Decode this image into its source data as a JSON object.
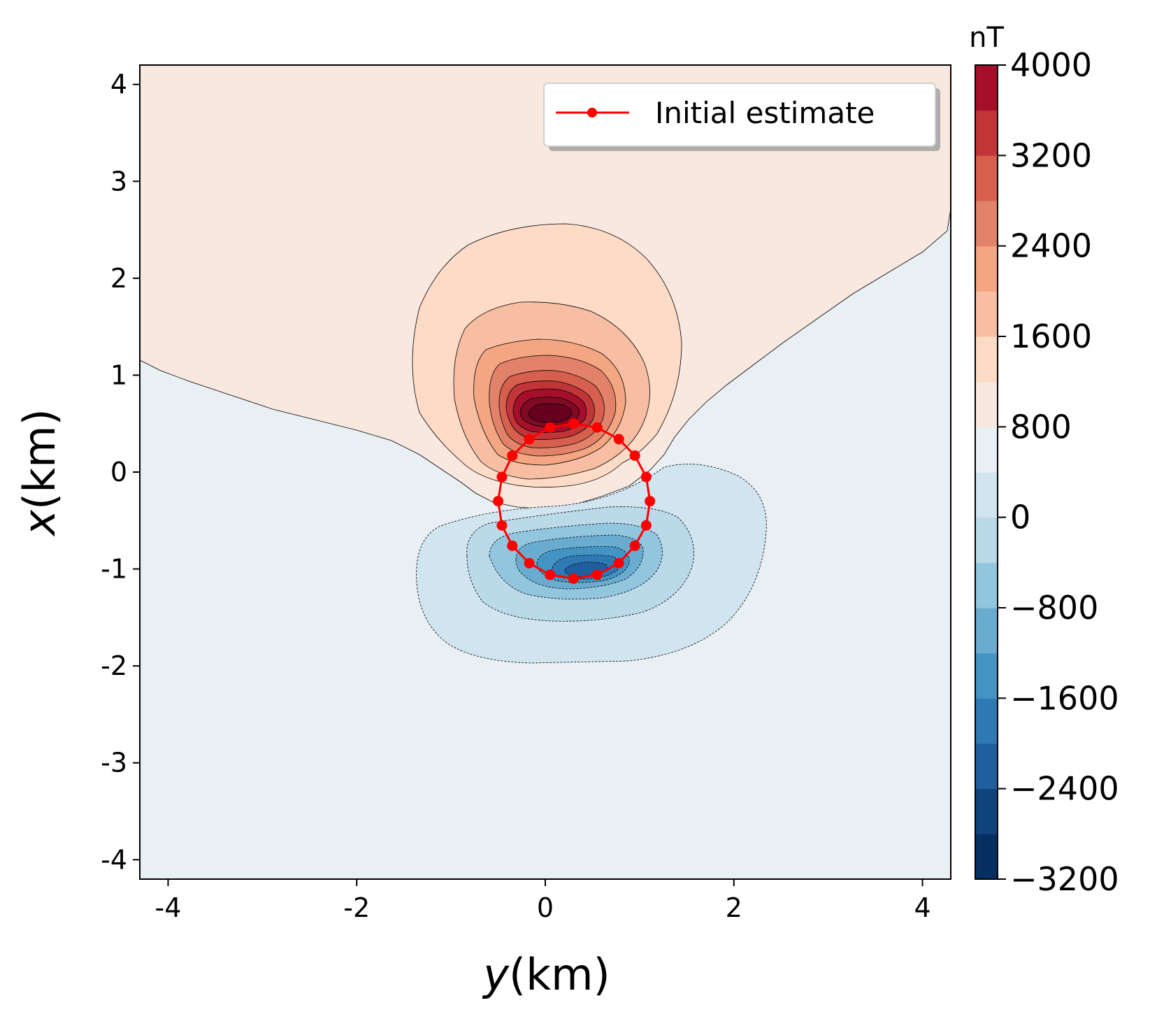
{
  "chart_data": {
    "type": "contour",
    "xlabel_var": "y",
    "xlabel_unit": "(km)",
    "ylabel_var": "x",
    "ylabel_unit": "(km)",
    "xlim": [
      -4.3,
      4.3
    ],
    "ylim": [
      -4.2,
      4.2
    ],
    "xticks": [
      -4,
      -2,
      0,
      2,
      4
    ],
    "xtick_labels": [
      "-4",
      "-2",
      "0",
      "2",
      "4"
    ],
    "yticks": [
      4,
      3,
      2,
      1,
      0,
      -1,
      -2,
      -3,
      -4
    ],
    "ytick_labels": [
      "4",
      "3",
      "2",
      "1",
      "0",
      "-1",
      "-2",
      "-3",
      "-4"
    ],
    "colormap": "RdBu_r",
    "colorbar": {
      "label": "nT",
      "min": -3200,
      "max": 4000,
      "ticks": [
        4000,
        3200,
        2400,
        1600,
        800,
        0,
        -800,
        -1600,
        -2400,
        -3200
      ],
      "tick_labels": [
        "4000",
        "3200",
        "2400",
        "1600",
        "800",
        "0",
        "−800",
        "−1600",
        "−2400",
        "−3200"
      ],
      "levels": [
        -3200,
        -2800,
        -2400,
        -2000,
        -1600,
        -1200,
        -800,
        -400,
        0,
        400,
        800,
        1200,
        1600,
        2000,
        2400,
        2800,
        3200,
        3600,
        4000
      ],
      "colors": [
        "#053061",
        "#0f437b",
        "#1f5f9f",
        "#2f79b5",
        "#4393c3",
        "#6aacd0",
        "#92c5de",
        "#bad9e9",
        "#d1e5f0",
        "#e9f0f4",
        "#f9e8df",
        "#fddbc7",
        "#f8bea3",
        "#f4a582",
        "#e2826a",
        "#d6604d",
        "#c13539",
        "#a50f29",
        "#800a24",
        "#67001f"
      ]
    },
    "field_description_levels": {
      "positive_peak": 3600,
      "negative_peak": -2800
    },
    "series": [
      {
        "name": "Initial estimate",
        "color": "#ff0000",
        "marker": "circle",
        "y": [
          0.3,
          0.55,
          0.78,
          0.95,
          1.07,
          1.11,
          1.07,
          0.95,
          0.78,
          0.55,
          0.3,
          0.05,
          -0.17,
          -0.35,
          -0.46,
          -0.5,
          -0.46,
          -0.35,
          -0.17,
          0.05,
          0.3
        ],
        "x": [
          0.5,
          0.46,
          0.34,
          0.17,
          -0.05,
          -0.3,
          -0.55,
          -0.76,
          -0.94,
          -1.06,
          -1.1,
          -1.06,
          -0.94,
          -0.76,
          -0.55,
          -0.3,
          -0.05,
          0.17,
          0.34,
          0.46,
          0.5
        ]
      }
    ],
    "legend_position": "top-right"
  }
}
